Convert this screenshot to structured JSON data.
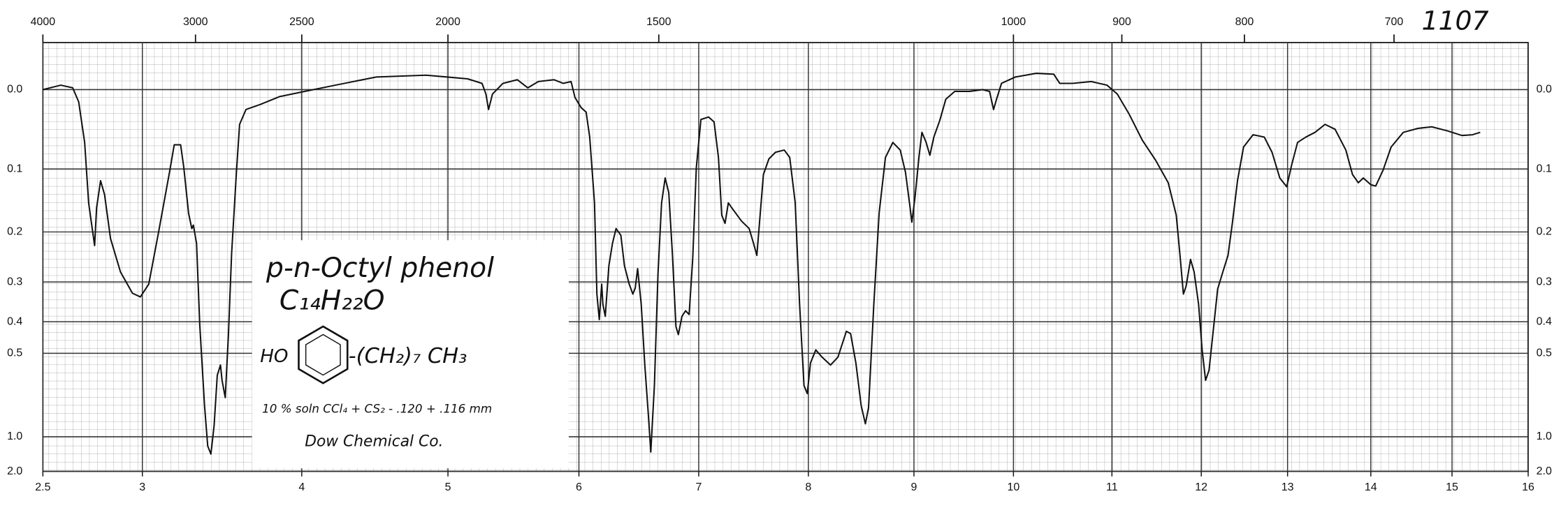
{
  "chart_data": {
    "type": "line",
    "color": "#111111",
    "xlim": [
      2.5,
      16
    ],
    "xticks": [
      2.5,
      3,
      4,
      5,
      6,
      7,
      8,
      9,
      10,
      11,
      12,
      13,
      14,
      15,
      16
    ],
    "x2scale": "wavenumber",
    "x2ticks": [
      4000,
      3000,
      2500,
      2000,
      1500,
      1000,
      900,
      800,
      700
    ],
    "yscale": "transmittance",
    "ylim": [
      -0.05,
      2
    ],
    "yticks": [
      {
        "value": 0,
        "label": "0.0"
      },
      0.1,
      0.2,
      0.3,
      0.4,
      0.5,
      {
        "value": 1,
        "label": "1.0"
      },
      {
        "value": 2,
        "label": "2.0"
      }
    ],
    "grid": true,
    "annotations": [
      "1107",
      "p-n-Octyl phenol",
      "C₁₄H₂₂O",
      "HO",
      "-(CH₂)₇ CH₃",
      "10 % soln CCl₄ + CS₂ - .120 + .116 mm",
      "Dow Chemical Co."
    ],
    "x": [
      2.5,
      2.59,
      2.65,
      2.68,
      2.71,
      2.73,
      2.76,
      2.77,
      2.79,
      2.81,
      2.84,
      2.89,
      2.95,
      2.99,
      3.04,
      3.1,
      3.17,
      3.2,
      3.24,
      3.26,
      3.29,
      3.31,
      3.32,
      3.34,
      3.36,
      3.39,
      3.41,
      3.43,
      3.45,
      3.47,
      3.49,
      3.5,
      3.52,
      3.54,
      3.56,
      3.59,
      3.61,
      3.65,
      3.74,
      3.86,
      4.02,
      4.23,
      4.51,
      4.85,
      5.15,
      5.26,
      5.29,
      5.31,
      5.34,
      5.42,
      5.53,
      5.61,
      5.69,
      5.81,
      5.88,
      5.94,
      5.97,
      6.02,
      6.06,
      6.09,
      6.13,
      6.15,
      6.17,
      6.19,
      6.2,
      6.22,
      6.25,
      6.28,
      6.31,
      6.35,
      6.38,
      6.42,
      6.45,
      6.47,
      6.49,
      6.52,
      6.55,
      6.58,
      6.6,
      6.63,
      6.66,
      6.69,
      6.72,
      6.75,
      6.78,
      6.81,
      6.83,
      6.86,
      6.89,
      6.92,
      6.95,
      6.98,
      7.02,
      7.09,
      7.14,
      7.18,
      7.21,
      7.24,
      7.27,
      7.31,
      7.39,
      7.46,
      7.5,
      7.53,
      7.56,
      7.59,
      7.64,
      7.7,
      7.78,
      7.83,
      7.88,
      7.92,
      7.96,
      7.99,
      8.02,
      8.07,
      8.13,
      8.21,
      8.28,
      8.36,
      8.4,
      8.45,
      8.5,
      8.54,
      8.57,
      8.62,
      8.67,
      8.73,
      8.8,
      8.87,
      8.92,
      8.96,
      8.98,
      9.01,
      9.05,
      9.08,
      9.12,
      9.16,
      9.2,
      9.26,
      9.32,
      9.41,
      9.56,
      9.69,
      9.76,
      9.8,
      9.83,
      9.88,
      10.02,
      10.23,
      10.41,
      10.47,
      10.6,
      10.79,
      10.95,
      11.06,
      11.19,
      11.34,
      11.49,
      11.63,
      11.72,
      11.76,
      11.8,
      11.83,
      11.88,
      11.92,
      11.97,
      12.01,
      12.05,
      12.09,
      12.14,
      12.19,
      12.25,
      12.31,
      12.36,
      12.42,
      12.49,
      12.6,
      12.73,
      12.82,
      12.91,
      12.99,
      13.05,
      13.12,
      13.22,
      13.33,
      13.45,
      13.57,
      13.7,
      13.78,
      13.85,
      13.91,
      14.0,
      14.06,
      14.15,
      14.25,
      14.4,
      14.58,
      14.75,
      14.94,
      15.13,
      15.27,
      15.37
    ],
    "values": [
      0.0,
      -0.005,
      -0.002,
      0.014,
      0.064,
      0.151,
      0.225,
      0.159,
      0.117,
      0.138,
      0.212,
      0.278,
      0.326,
      0.335,
      0.305,
      0.203,
      0.105,
      0.067,
      0.067,
      0.098,
      0.168,
      0.194,
      0.188,
      0.221,
      0.408,
      0.743,
      1.12,
      1.26,
      0.892,
      0.586,
      0.544,
      0.609,
      0.696,
      0.438,
      0.24,
      0.105,
      0.041,
      0.023,
      0.017,
      0.008,
      0.002,
      -0.005,
      -0.014,
      -0.016,
      -0.012,
      -0.007,
      0.005,
      0.023,
      0.005,
      -0.007,
      -0.011,
      -0.002,
      -0.009,
      -0.011,
      -0.007,
      -0.009,
      0.009,
      0.021,
      0.026,
      0.057,
      0.151,
      0.328,
      0.394,
      0.305,
      0.353,
      0.385,
      0.265,
      0.221,
      0.194,
      0.206,
      0.265,
      0.305,
      0.328,
      0.314,
      0.271,
      0.353,
      0.544,
      0.811,
      1.22,
      0.633,
      0.282,
      0.151,
      0.113,
      0.135,
      0.24,
      0.414,
      0.438,
      0.385,
      0.37,
      0.38,
      0.25,
      0.098,
      0.035,
      0.032,
      0.038,
      0.084,
      0.171,
      0.185,
      0.151,
      0.161,
      0.181,
      0.194,
      0.221,
      0.244,
      0.171,
      0.108,
      0.086,
      0.077,
      0.074,
      0.084,
      0.151,
      0.353,
      0.633,
      0.674,
      0.536,
      0.488,
      0.514,
      0.544,
      0.514,
      0.428,
      0.435,
      0.536,
      0.743,
      0.875,
      0.756,
      0.353,
      0.168,
      0.084,
      0.064,
      0.074,
      0.105,
      0.154,
      0.183,
      0.143,
      0.084,
      0.051,
      0.063,
      0.081,
      0.057,
      0.036,
      0.011,
      0.002,
      0.002,
      0.0,
      0.002,
      0.023,
      0.011,
      -0.007,
      -0.014,
      -0.018,
      -0.017,
      -0.007,
      -0.007,
      -0.009,
      -0.005,
      0.005,
      0.028,
      0.061,
      0.088,
      0.12,
      0.171,
      0.24,
      0.328,
      0.31,
      0.252,
      0.278,
      0.353,
      0.488,
      0.609,
      0.565,
      0.423,
      0.316,
      0.278,
      0.244,
      0.185,
      0.117,
      0.07,
      0.054,
      0.057,
      0.077,
      0.113,
      0.126,
      0.094,
      0.064,
      0.057,
      0.051,
      0.041,
      0.047,
      0.074,
      0.108,
      0.12,
      0.113,
      0.123,
      0.125,
      0.102,
      0.07,
      0.051,
      0.046,
      0.044,
      0.049,
      0.055,
      0.054,
      0.051
    ]
  }
}
